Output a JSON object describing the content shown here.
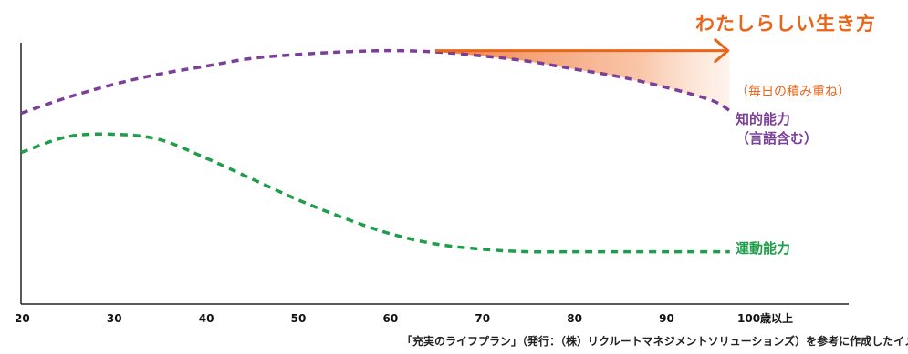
{
  "colors": {
    "orange": "#e9651a",
    "orange_fill": "#f5a070",
    "purple": "#7b3f98",
    "green": "#1e9e4a",
    "axis": "#222222"
  },
  "labels": {
    "headline": "わたしらしい生き方",
    "orange_note": "（毎日の積み重ね）",
    "intel_line1": "知的能力",
    "intel_line2": "（言語含む）",
    "motor": "運動能力",
    "source": "「充実のライフプラン」（発行：（株）リクルートマネジメントソリューションズ）を参考に作成したイメージ"
  },
  "chart_data": {
    "type": "line",
    "x_ticks": [
      "20",
      "30",
      "40",
      "50",
      "60",
      "70",
      "80",
      "90",
      "100歳以上"
    ],
    "x_range": [
      20,
      100
    ],
    "y_range": [
      0,
      100
    ],
    "grid": false,
    "series": [
      {
        "name": "知的能力（言語含む）",
        "style": "dashed",
        "color": "#7b3f98",
        "x": [
          20,
          25,
          30,
          35,
          40,
          45,
          50,
          55,
          60,
          65,
          70,
          75,
          80,
          85,
          90,
          95,
          97
        ],
        "y": [
          73,
          79,
          84,
          88,
          91,
          94,
          95.5,
          96.5,
          97,
          96.5,
          95,
          93,
          90,
          87,
          83,
          78,
          74
        ]
      },
      {
        "name": "運動能力",
        "style": "dashed",
        "color": "#1e9e4a",
        "x": [
          20,
          25,
          30,
          35,
          40,
          45,
          50,
          55,
          60,
          65,
          70,
          75,
          80,
          85,
          90,
          95,
          97
        ],
        "y": [
          58,
          64,
          65,
          63,
          56,
          48,
          40,
          33,
          27,
          23,
          21,
          20,
          20,
          20,
          20,
          20,
          20
        ]
      },
      {
        "name": "わたしらしい生き方",
        "style": "arrow",
        "color": "#e9651a",
        "x": [
          65,
          97
        ],
        "y": [
          97,
          97
        ]
      }
    ]
  }
}
